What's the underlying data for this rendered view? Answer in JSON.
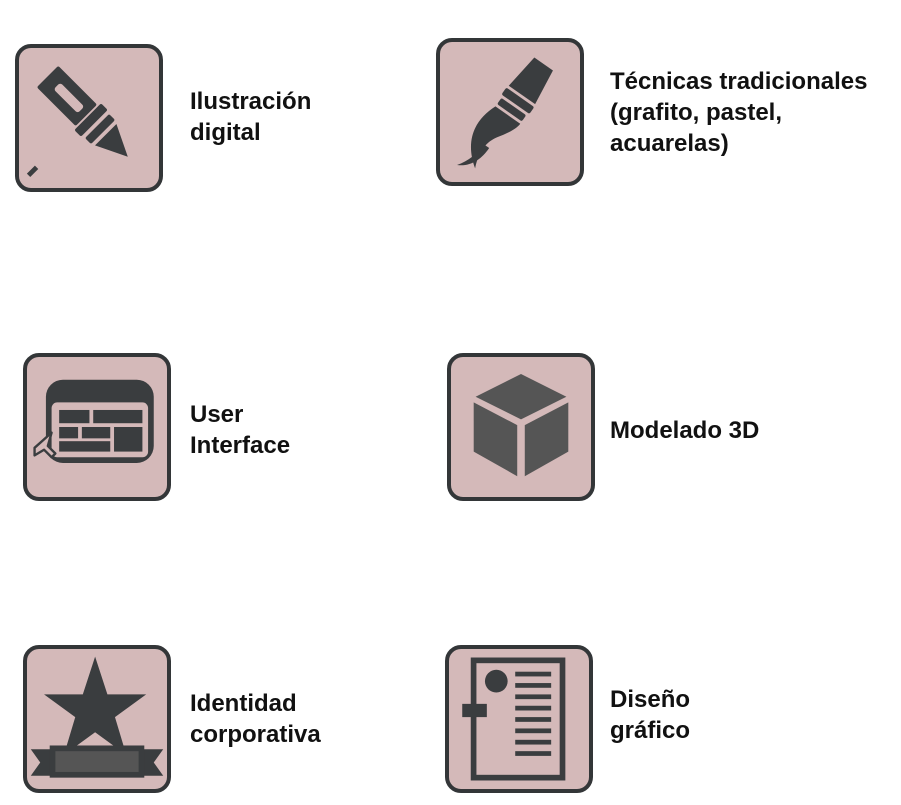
{
  "colors": {
    "icon_background": "#d4b9b9",
    "icon_foreground": "#3a3d3f",
    "text": "#111111"
  },
  "skills": [
    {
      "icon": "marker-pen-icon",
      "label_lines": [
        "Ilustración",
        "digital"
      ]
    },
    {
      "icon": "paintbrush-icon",
      "label_lines": [
        "Técnicas tradicionales",
        "(grafito, pastel,",
        "acuarelas)"
      ]
    },
    {
      "icon": "browser-window-icon",
      "label_lines": [
        "User",
        "Interface"
      ]
    },
    {
      "icon": "cube-icon",
      "label_lines": [
        "Modelado 3D"
      ]
    },
    {
      "icon": "star-ribbon-icon",
      "label_lines": [
        "Identidad",
        "corporativa"
      ]
    },
    {
      "icon": "document-layout-icon",
      "label_lines": [
        "Diseño",
        "gráfico"
      ]
    }
  ]
}
